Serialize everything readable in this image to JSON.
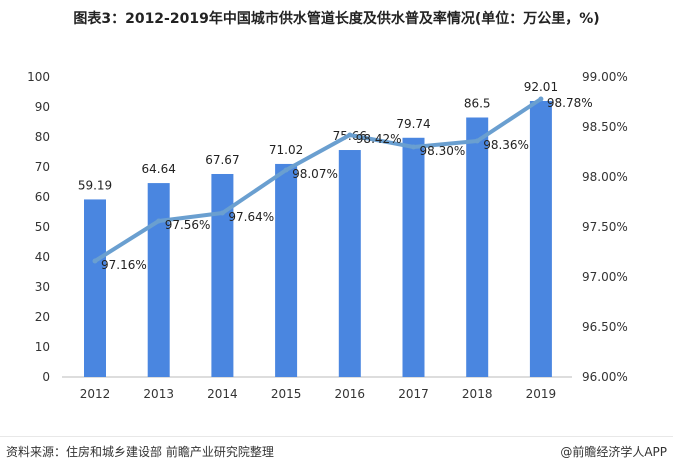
{
  "title": "图表3：2012-2019年中国城市供水管道长度及供水普及率情况(单位：万公里，%)",
  "source": "资料来源：住房和城乡建设部 前瞻产业研究院整理",
  "credit": "@前瞻经济学人APP",
  "chart_data": {
    "type": "bar+line",
    "categories": [
      "2012",
      "2013",
      "2014",
      "2015",
      "2016",
      "2017",
      "2018",
      "2019"
    ],
    "series": [
      {
        "type": "bar",
        "axis": "left",
        "color": "#4a86e0",
        "values": [
          59.19,
          64.64,
          67.67,
          71.02,
          75.66,
          79.74,
          86.5,
          92.01
        ],
        "labels": [
          "59.19",
          "64.64",
          "67.67",
          "71.02",
          "75.66",
          "79.74",
          "86.5",
          "92.01"
        ]
      },
      {
        "type": "line",
        "axis": "right",
        "color": "#6a9fd0",
        "values": [
          97.16,
          97.56,
          97.64,
          98.07,
          98.42,
          98.3,
          98.36,
          98.78
        ],
        "labels": [
          "97.16%",
          "97.56%",
          "97.64%",
          "98.07%",
          "98.42%",
          "98.30%",
          "98.36%",
          "98.78%"
        ]
      }
    ],
    "y_left": {
      "lim": [
        0,
        100
      ],
      "ticks": [
        "0",
        "10",
        "20",
        "30",
        "40",
        "50",
        "60",
        "70",
        "80",
        "90",
        "100"
      ]
    },
    "y_right": {
      "lim": [
        96,
        99
      ],
      "ticks": [
        "96.00%",
        "96.50%",
        "97.00%",
        "97.50%",
        "98.00%",
        "98.50%",
        "99.00%"
      ]
    },
    "grid": false,
    "legend": "none"
  }
}
